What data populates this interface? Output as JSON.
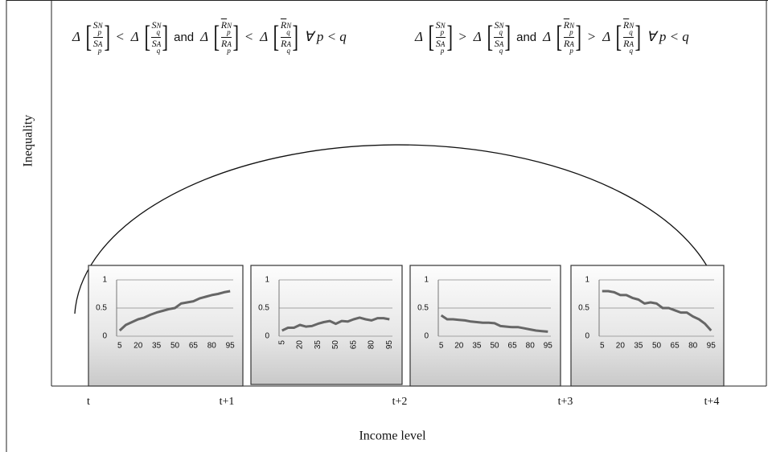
{
  "y_label": "Inequality",
  "x_label": "Income level",
  "x_stages": [
    "t",
    "t+1",
    "t+2",
    "t+3",
    "t+4"
  ],
  "formulas": [
    {
      "tokens": [
        {
          "text": "Δ"
        },
        {
          "num": {
            "base": "S",
            "sub": "p",
            "sup": "N",
            "bar": false
          },
          "den": {
            "base": "S",
            "sub": "p",
            "sup": "A",
            "bar": false
          }
        },
        {
          "text": "<"
        },
        {
          "text": "Δ"
        },
        {
          "num": {
            "base": "S",
            "sub": "q",
            "sup": "N",
            "bar": false
          },
          "den": {
            "base": "S",
            "sub": "q",
            "sup": "A",
            "bar": false
          }
        },
        {
          "text": "and",
          "upright": true
        },
        {
          "text": "Δ"
        },
        {
          "num": {
            "base": "R",
            "sub": "p",
            "sup": "N",
            "bar": true
          },
          "den": {
            "base": "R",
            "sub": "p",
            "sup": "A",
            "bar": true
          }
        },
        {
          "text": "<"
        },
        {
          "text": "Δ"
        },
        {
          "num": {
            "base": "R",
            "sub": "q",
            "sup": "N",
            "bar": true
          },
          "den": {
            "base": "R",
            "sub": "q",
            "sup": "A",
            "bar": true
          }
        },
        {
          "text": "∀  p < q"
        }
      ]
    },
    {
      "tokens": [
        {
          "text": "Δ"
        },
        {
          "num": {
            "base": "S",
            "sub": "p",
            "sup": "N",
            "bar": false
          },
          "den": {
            "base": "S",
            "sub": "p",
            "sup": "A",
            "bar": false
          }
        },
        {
          "text": ">"
        },
        {
          "text": "Δ"
        },
        {
          "num": {
            "base": "S",
            "sub": "q",
            "sup": "N",
            "bar": false
          },
          "den": {
            "base": "S",
            "sub": "q",
            "sup": "A",
            "bar": false
          }
        },
        {
          "text": "and",
          "upright": true
        },
        {
          "text": "Δ"
        },
        {
          "num": {
            "base": "R",
            "sub": "p",
            "sup": "N",
            "bar": true
          },
          "den": {
            "base": "R",
            "sub": "p",
            "sup": "A",
            "bar": true
          }
        },
        {
          "text": ">"
        },
        {
          "text": "Δ"
        },
        {
          "num": {
            "base": "R",
            "sub": "q",
            "sup": "N",
            "bar": true
          },
          "den": {
            "base": "R",
            "sub": "q",
            "sup": "A",
            "bar": true
          }
        },
        {
          "text": "∀  p < q"
        }
      ]
    }
  ],
  "panels": [
    {
      "type": "line",
      "color": "#666666",
      "ylim": [
        0,
        1
      ],
      "yticks": [
        0,
        0.5,
        1
      ],
      "grid": true,
      "xtick_rotation": 0,
      "categories": [
        5,
        null,
        null,
        20,
        null,
        null,
        35,
        null,
        null,
        50,
        null,
        null,
        65,
        null,
        null,
        80,
        null,
        null,
        95
      ],
      "values": [
        0.1,
        0.2,
        0.25,
        0.3,
        0.33,
        0.38,
        0.42,
        0.45,
        0.48,
        0.5,
        0.58,
        0.6,
        0.62,
        0.67,
        0.7,
        0.73,
        0.75,
        0.78,
        0.8
      ]
    },
    {
      "type": "line",
      "color": "#666666",
      "ylim": [
        0,
        1
      ],
      "yticks": [
        0,
        0.5,
        1
      ],
      "grid": true,
      "xtick_rotation": -90,
      "categories": [
        5,
        null,
        null,
        20,
        null,
        null,
        35,
        null,
        null,
        50,
        null,
        null,
        65,
        null,
        null,
        80,
        null,
        null,
        95
      ],
      "values": [
        0.1,
        0.15,
        0.15,
        0.2,
        0.17,
        0.18,
        0.22,
        0.25,
        0.27,
        0.22,
        0.27,
        0.26,
        0.3,
        0.33,
        0.3,
        0.28,
        0.32,
        0.32,
        0.3
      ]
    },
    {
      "type": "line",
      "color": "#666666",
      "ylim": [
        0,
        1
      ],
      "yticks": [
        0,
        0.5,
        1
      ],
      "grid": true,
      "xtick_rotation": 0,
      "categories": [
        5,
        null,
        null,
        20,
        null,
        null,
        35,
        null,
        null,
        50,
        null,
        null,
        65,
        null,
        null,
        80,
        null,
        null,
        95
      ],
      "values": [
        0.37,
        0.3,
        0.3,
        0.29,
        0.28,
        0.26,
        0.25,
        0.24,
        0.24,
        0.23,
        0.18,
        0.17,
        0.16,
        0.16,
        0.14,
        0.12,
        0.1,
        0.09,
        0.08
      ]
    },
    {
      "type": "line",
      "color": "#666666",
      "ylim": [
        0,
        1
      ],
      "yticks": [
        0,
        0.5,
        1
      ],
      "grid": true,
      "xtick_rotation": 0,
      "categories": [
        5,
        null,
        null,
        20,
        null,
        null,
        35,
        null,
        null,
        50,
        null,
        null,
        65,
        null,
        null,
        80,
        null,
        null,
        95
      ],
      "values": [
        0.8,
        0.8,
        0.78,
        0.73,
        0.73,
        0.68,
        0.65,
        0.58,
        0.6,
        0.58,
        0.5,
        0.5,
        0.46,
        0.42,
        0.42,
        0.35,
        0.3,
        0.22,
        0.1
      ]
    }
  ]
}
